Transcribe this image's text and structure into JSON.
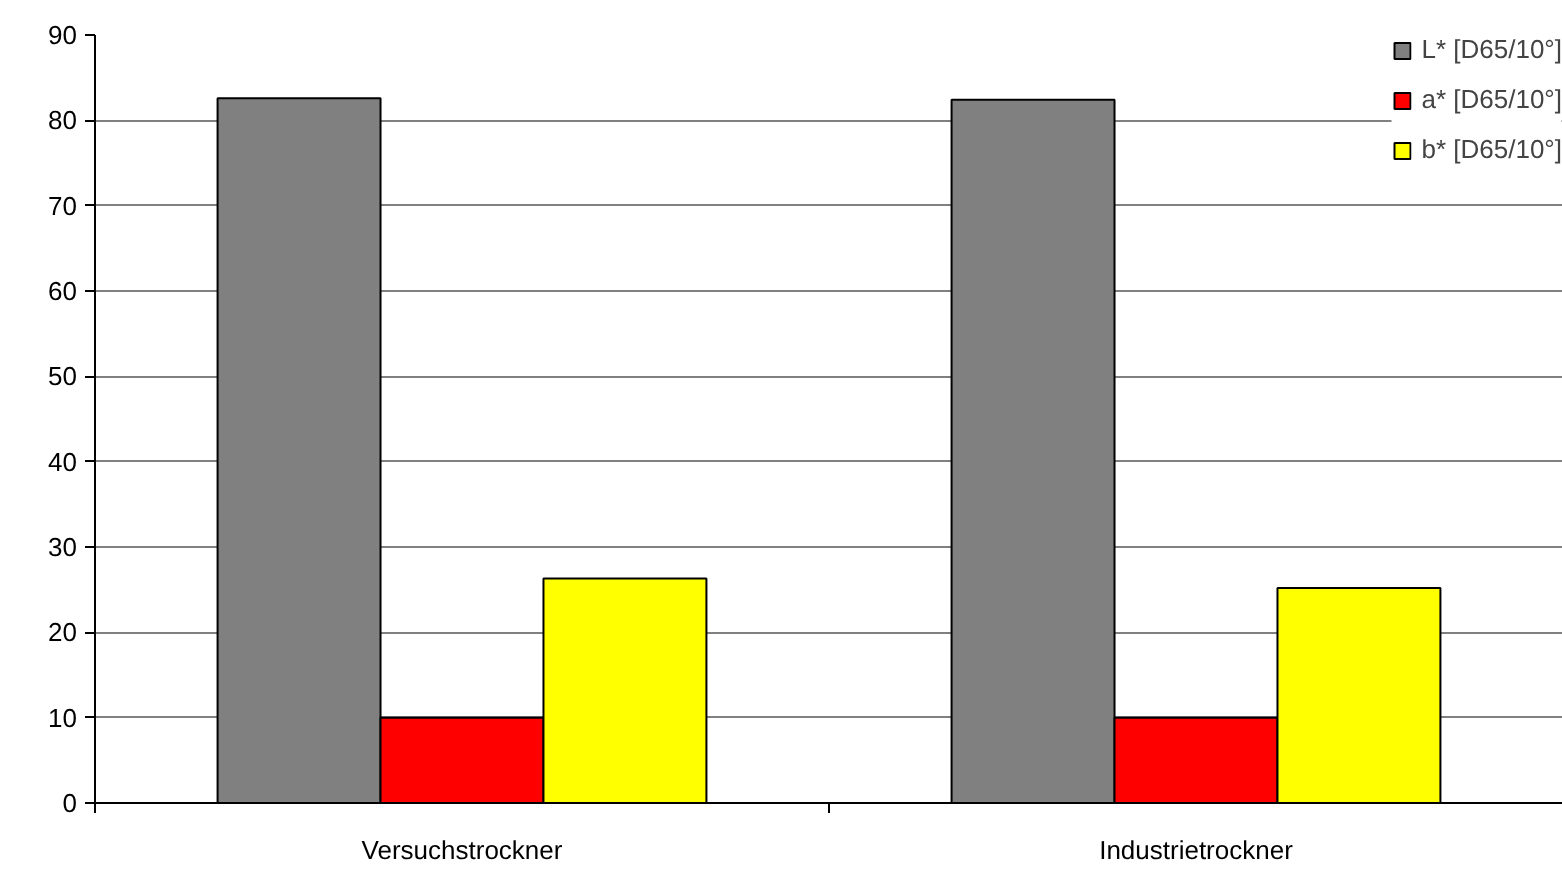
{
  "chart_data": {
    "type": "bar",
    "categories": [
      "Versuchstrockner",
      "Industrietrockner"
    ],
    "series": [
      {
        "name": "L* [D65/10°]",
        "color": "#808080",
        "values": [
          82.6,
          82.4
        ]
      },
      {
        "name": "a* [D65/10°]",
        "color": "#ff0000",
        "values": [
          10.0,
          10.0
        ]
      },
      {
        "name": "b* [D65/10°]",
        "color": "#ffff00",
        "values": [
          26.3,
          25.2
        ]
      }
    ],
    "ylim": [
      0,
      90
    ],
    "yticks": [
      0,
      10,
      20,
      30,
      40,
      50,
      60,
      70,
      80,
      90
    ],
    "grid": "y",
    "legend": "top right"
  }
}
